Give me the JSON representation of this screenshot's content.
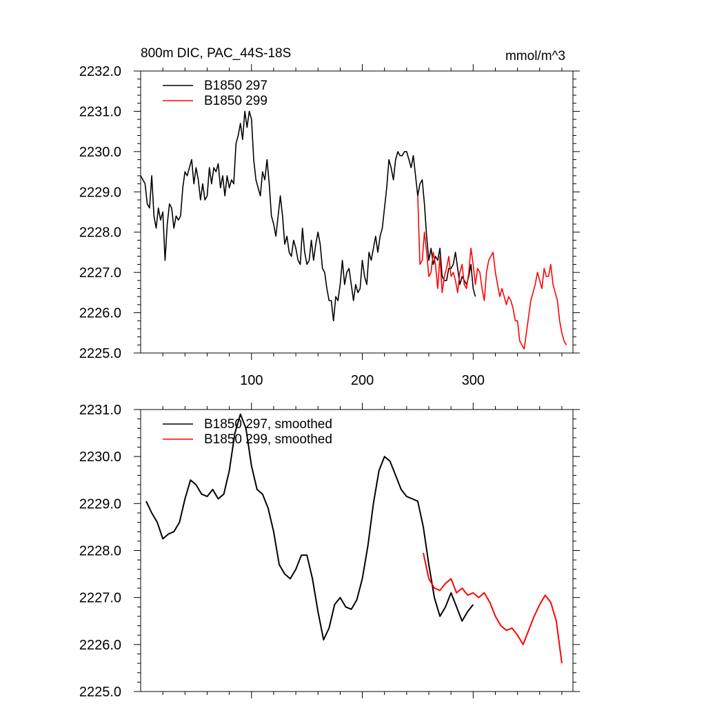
{
  "header": {
    "title": "800m DIC, PAC_44S-18S",
    "units": "mmol/m^3"
  },
  "colors": {
    "run297": "#000000",
    "run299": "#ff0000",
    "axis": "#000000"
  },
  "chart_data": [
    {
      "type": "line",
      "title": "800m DIC, PAC_44S-18S",
      "units": "mmol/m^3",
      "xlim": [
        0,
        390
      ],
      "ylim": [
        2225.0,
        2232.0
      ],
      "x_ticks": [
        100,
        200,
        300
      ],
      "x_tick_labels": [
        "100",
        "200",
        "300"
      ],
      "y_ticks": [
        2225.0,
        2226.0,
        2227.0,
        2228.0,
        2229.0,
        2230.0,
        2231.0,
        2232.0
      ],
      "y_tick_labels": [
        "2225.0",
        "2226.0",
        "2227.0",
        "2228.0",
        "2229.0",
        "2230.0",
        "2231.0",
        "2232.0"
      ],
      "legend_position": "top-left",
      "series": [
        {
          "name": "B1850 297",
          "color": "#000000",
          "x": [
            0,
            2,
            4,
            6,
            8,
            10,
            12,
            14,
            16,
            18,
            20,
            22,
            24,
            26,
            28,
            30,
            32,
            34,
            36,
            38,
            40,
            42,
            44,
            46,
            48,
            50,
            52,
            54,
            56,
            58,
            60,
            62,
            64,
            66,
            68,
            70,
            72,
            74,
            76,
            78,
            80,
            82,
            84,
            86,
            88,
            90,
            92,
            94,
            96,
            98,
            100,
            102,
            104,
            106,
            108,
            110,
            112,
            114,
            116,
            118,
            120,
            122,
            124,
            126,
            128,
            130,
            132,
            134,
            136,
            138,
            140,
            142,
            144,
            146,
            148,
            150,
            152,
            154,
            156,
            158,
            160,
            162,
            164,
            166,
            168,
            170,
            172,
            174,
            176,
            178,
            180,
            182,
            184,
            186,
            188,
            190,
            192,
            194,
            196,
            198,
            200,
            202,
            204,
            206,
            208,
            210,
            212,
            214,
            216,
            218,
            220,
            222,
            224,
            226,
            228,
            230,
            232,
            234,
            236,
            238,
            240,
            242,
            244,
            246,
            248,
            250,
            252,
            254,
            256,
            258,
            260,
            262,
            264,
            266,
            268,
            270,
            272,
            274,
            276,
            278,
            280,
            282,
            284,
            286,
            288,
            290,
            292,
            294,
            296,
            298,
            300,
            302
          ],
          "y": [
            2229.4,
            2229.3,
            2229.2,
            2228.7,
            2228.6,
            2229.4,
            2228.4,
            2228.1,
            2228.6,
            2228.3,
            2228.5,
            2227.3,
            2228.2,
            2228.7,
            2228.6,
            2228.1,
            2228.4,
            2228.3,
            2228.4,
            2229.1,
            2229.5,
            2229.4,
            2229.6,
            2229.8,
            2229.2,
            2229.6,
            2229.3,
            2228.8,
            2229.2,
            2228.8,
            2228.9,
            2229.6,
            2229.2,
            2229.6,
            2229.5,
            2229.7,
            2229.1,
            2229.4,
            2228.9,
            2229.4,
            2229.1,
            2229.3,
            2229.2,
            2230.2,
            2230.4,
            2230.7,
            2230.3,
            2231.0,
            2230.6,
            2231.0,
            2230.8,
            2229.8,
            2229.3,
            2229.1,
            2228.9,
            2229.5,
            2229.3,
            2229.8,
            2229.2,
            2228.4,
            2228.2,
            2227.9,
            2228.4,
            2228.9,
            2228.4,
            2227.7,
            2227.9,
            2227.5,
            2227.4,
            2227.8,
            2227.6,
            2227.3,
            2227.2,
            2228.1,
            2227.5,
            2227.2,
            2227.3,
            2227.8,
            2227.3,
            2227.7,
            2228.0,
            2227.7,
            2227.1,
            2227.0,
            2226.6,
            2226.3,
            2226.3,
            2225.8,
            2226.4,
            2226.3,
            2226.7,
            2227.3,
            2226.7,
            2227.0,
            2227.1,
            2226.7,
            2226.3,
            2226.7,
            2226.5,
            2226.6,
            2227.3,
            2226.9,
            2226.7,
            2227.5,
            2227.3,
            2227.6,
            2227.9,
            2227.5,
            2227.9,
            2228.1,
            2228.6,
            2229.1,
            2229.8,
            2229.6,
            2229.3,
            2229.8,
            2230.0,
            2229.9,
            2229.9,
            2230.0,
            2230.0,
            2229.8,
            2229.6,
            2229.9,
            2229.4,
            2228.9,
            2229.2,
            2229.3,
            2228.7,
            2227.9,
            2227.3,
            2227.6,
            2227.2,
            2227.4,
            2227.3,
            2227.6,
            2226.9,
            2226.8,
            2226.8,
            2227.1,
            2227.1,
            2227.2,
            2227.5,
            2227.1,
            2226.7,
            2226.9,
            2226.8,
            2226.7,
            2226.9,
            2227.2,
            2226.6,
            2226.4
          ]
        },
        {
          "name": "B1850 299",
          "color": "#ff0000",
          "x": [
            250,
            252,
            254,
            256,
            258,
            260,
            262,
            264,
            266,
            268,
            270,
            272,
            274,
            276,
            278,
            280,
            282,
            284,
            286,
            288,
            290,
            292,
            294,
            296,
            298,
            300,
            302,
            304,
            306,
            308,
            310,
            312,
            314,
            316,
            318,
            320,
            322,
            324,
            326,
            328,
            330,
            332,
            334,
            336,
            338,
            340,
            342,
            344,
            346,
            348,
            350,
            352,
            354,
            356,
            358,
            360,
            362,
            364,
            366,
            368,
            370,
            372,
            374,
            376,
            378,
            380,
            382,
            384
          ],
          "y": [
            2228.9,
            2227.2,
            2227.3,
            2228.0,
            2227.5,
            2226.9,
            2227.0,
            2227.5,
            2227.2,
            2226.6,
            2227.4,
            2226.5,
            2226.9,
            2227.1,
            2227.4,
            2226.9,
            2227.0,
            2226.8,
            2226.5,
            2227.0,
            2227.2,
            2226.7,
            2226.6,
            2227.0,
            2227.6,
            2227.2,
            2226.7,
            2227.1,
            2227.0,
            2226.6,
            2226.3,
            2227.0,
            2227.3,
            2227.4,
            2227.5,
            2227.0,
            2226.7,
            2226.4,
            2226.6,
            2226.4,
            2226.2,
            2226.4,
            2226.3,
            2226.1,
            2225.8,
            2225.8,
            2225.3,
            2225.2,
            2225.1,
            2225.5,
            2225.9,
            2226.3,
            2226.5,
            2226.7,
            2227.0,
            2226.8,
            2226.6,
            2227.1,
            2226.9,
            2226.9,
            2227.2,
            2226.7,
            2226.5,
            2226.3,
            2225.8,
            2225.5,
            2225.3,
            2225.2
          ]
        }
      ]
    },
    {
      "type": "line",
      "xlim": [
        0,
        390
      ],
      "ylim": [
        2225.0,
        2231.0
      ],
      "x_ticks": [
        100,
        200,
        300
      ],
      "x_tick_labels": [],
      "y_ticks": [
        2225.0,
        2226.0,
        2227.0,
        2228.0,
        2229.0,
        2230.0,
        2231.0
      ],
      "y_tick_labels": [
        "2225.0",
        "2226.0",
        "2227.0",
        "2228.0",
        "2229.0",
        "2230.0",
        "2231.0"
      ],
      "legend_position": "top-left",
      "series": [
        {
          "name": "B1850 297, smoothed",
          "color": "#000000",
          "x": [
            5,
            10,
            15,
            20,
            25,
            30,
            35,
            40,
            45,
            50,
            55,
            60,
            65,
            70,
            75,
            80,
            85,
            90,
            95,
            100,
            105,
            110,
            115,
            120,
            125,
            130,
            135,
            140,
            145,
            150,
            155,
            160,
            165,
            170,
            175,
            180,
            185,
            190,
            195,
            200,
            205,
            210,
            215,
            220,
            225,
            230,
            235,
            240,
            245,
            250,
            255,
            260,
            265,
            270,
            275,
            280,
            285,
            290,
            295,
            300
          ],
          "y": [
            2229.05,
            2228.8,
            2228.6,
            2228.25,
            2228.35,
            2228.4,
            2228.6,
            2229.1,
            2229.5,
            2229.4,
            2229.2,
            2229.15,
            2229.3,
            2229.1,
            2229.2,
            2229.7,
            2230.5,
            2230.9,
            2230.6,
            2229.8,
            2229.3,
            2229.2,
            2228.9,
            2228.4,
            2227.7,
            2227.5,
            2227.4,
            2227.6,
            2227.9,
            2227.9,
            2227.4,
            2226.7,
            2226.1,
            2226.35,
            2226.85,
            2227.0,
            2226.8,
            2226.75,
            2226.95,
            2227.4,
            2228.1,
            2229.0,
            2229.7,
            2230.0,
            2229.9,
            2229.6,
            2229.3,
            2229.15,
            2229.1,
            2229.05,
            2228.5,
            2227.7,
            2227.0,
            2226.6,
            2226.8,
            2227.1,
            2226.8,
            2226.5,
            2226.7,
            2226.85
          ]
        },
        {
          "name": "B1850 299, smoothed",
          "color": "#ff0000",
          "x": [
            255,
            260,
            265,
            270,
            275,
            280,
            285,
            290,
            295,
            300,
            305,
            310,
            315,
            320,
            325,
            330,
            335,
            340,
            345,
            350,
            355,
            360,
            365,
            370,
            375,
            380
          ],
          "y": [
            2227.95,
            2227.4,
            2227.2,
            2227.15,
            2227.3,
            2227.4,
            2227.1,
            2227.2,
            2227.05,
            2227.1,
            2227.0,
            2227.1,
            2226.9,
            2226.6,
            2226.4,
            2226.3,
            2226.35,
            2226.2,
            2226.0,
            2226.3,
            2226.6,
            2226.85,
            2227.05,
            2226.9,
            2226.5,
            2225.6
          ]
        }
      ]
    }
  ]
}
